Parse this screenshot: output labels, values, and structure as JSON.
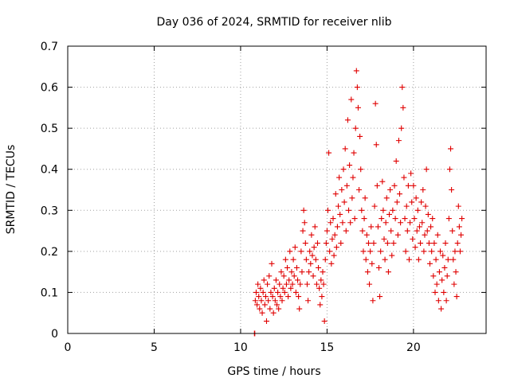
{
  "chart_data": {
    "type": "scatter",
    "title": "Day 036 of 2024, SRMTID for receiver nlib",
    "xlabel": "GPS time / hours",
    "ylabel": "SRMTID / TECUs",
    "xlim": [
      0,
      24.2
    ],
    "ylim": [
      0,
      0.7
    ],
    "xticks": [
      0,
      5,
      10,
      15,
      20
    ],
    "yticks": [
      0,
      0.1,
      0.2,
      0.3,
      0.4,
      0.5,
      0.6,
      0.7
    ],
    "x_tick_labels": [
      "0",
      "5",
      "10",
      "15",
      "20"
    ],
    "y_tick_labels": [
      "0",
      "0.1",
      "0.2",
      "0.3",
      "0.4",
      "0.5",
      "0.6",
      "0.7"
    ],
    "grid": true,
    "marker": "+",
    "series": [
      {
        "name": "SRMTID",
        "color": "#e00000",
        "points": [
          [
            10.8,
            0.0
          ],
          [
            10.82,
            0.0
          ],
          [
            10.85,
            0.08
          ],
          [
            10.9,
            0.1
          ],
          [
            10.95,
            0.07
          ],
          [
            11.0,
            0.12
          ],
          [
            11.05,
            0.09
          ],
          [
            11.1,
            0.06
          ],
          [
            11.15,
            0.11
          ],
          [
            11.2,
            0.08
          ],
          [
            11.25,
            0.05
          ],
          [
            11.3,
            0.1
          ],
          [
            11.35,
            0.13
          ],
          [
            11.4,
            0.07
          ],
          [
            11.45,
            0.09
          ],
          [
            11.5,
            0.03
          ],
          [
            11.55,
            0.12
          ],
          [
            11.6,
            0.08
          ],
          [
            11.65,
            0.14
          ],
          [
            11.7,
            0.06
          ],
          [
            11.75,
            0.1
          ],
          [
            11.8,
            0.17
          ],
          [
            11.85,
            0.09
          ],
          [
            11.9,
            0.05
          ],
          [
            11.95,
            0.11
          ],
          [
            12.0,
            0.08
          ],
          [
            12.05,
            0.13
          ],
          [
            12.1,
            0.07
          ],
          [
            12.15,
            0.1
          ],
          [
            12.2,
            0.06
          ],
          [
            12.25,
            0.12
          ],
          [
            12.3,
            0.09
          ],
          [
            12.35,
            0.15
          ],
          [
            12.4,
            0.08
          ],
          [
            12.45,
            0.11
          ],
          [
            12.5,
            0.14
          ],
          [
            12.55,
            0.1
          ],
          [
            12.6,
            0.18
          ],
          [
            12.65,
            0.12
          ],
          [
            12.7,
            0.16
          ],
          [
            12.75,
            0.09
          ],
          [
            12.8,
            0.13
          ],
          [
            12.85,
            0.2
          ],
          [
            12.9,
            0.11
          ],
          [
            12.95,
            0.15
          ],
          [
            13.0,
            0.12
          ],
          [
            13.05,
            0.18
          ],
          [
            13.1,
            0.14
          ],
          [
            13.15,
            0.21
          ],
          [
            13.2,
            0.1
          ],
          [
            13.25,
            0.16
          ],
          [
            13.3,
            0.13
          ],
          [
            13.35,
            0.09
          ],
          [
            13.4,
            0.06
          ],
          [
            13.45,
            0.12
          ],
          [
            13.5,
            0.2
          ],
          [
            13.55,
            0.15
          ],
          [
            13.6,
            0.25
          ],
          [
            13.65,
            0.3
          ],
          [
            13.7,
            0.27
          ],
          [
            13.75,
            0.22
          ],
          [
            13.8,
            0.18
          ],
          [
            13.85,
            0.12
          ],
          [
            13.9,
            0.08
          ],
          [
            13.95,
            0.15
          ],
          [
            14.0,
            0.2
          ],
          [
            14.05,
            0.17
          ],
          [
            14.1,
            0.24
          ],
          [
            14.15,
            0.19
          ],
          [
            14.2,
            0.14
          ],
          [
            14.25,
            0.21
          ],
          [
            14.3,
            0.26
          ],
          [
            14.35,
            0.18
          ],
          [
            14.4,
            0.12
          ],
          [
            14.45,
            0.22
          ],
          [
            14.5,
            0.16
          ],
          [
            14.55,
            0.11
          ],
          [
            14.6,
            0.07
          ],
          [
            14.65,
            0.13
          ],
          [
            14.7,
            0.09
          ],
          [
            14.75,
            0.15
          ],
          [
            14.8,
            0.12
          ],
          [
            14.85,
            0.03
          ],
          [
            14.9,
            0.18
          ],
          [
            14.95,
            0.22
          ],
          [
            15.0,
            0.25
          ],
          [
            15.05,
            0.3
          ],
          [
            15.1,
            0.44
          ],
          [
            15.15,
            0.2
          ],
          [
            15.2,
            0.27
          ],
          [
            15.25,
            0.17
          ],
          [
            15.3,
            0.23
          ],
          [
            15.35,
            0.28
          ],
          [
            15.4,
            0.19
          ],
          [
            15.45,
            0.24
          ],
          [
            15.5,
            0.34
          ],
          [
            15.55,
            0.21
          ],
          [
            15.6,
            0.26
          ],
          [
            15.65,
            0.31
          ],
          [
            15.7,
            0.38
          ],
          [
            15.75,
            0.29
          ],
          [
            15.8,
            0.22
          ],
          [
            15.85,
            0.35
          ],
          [
            15.9,
            0.27
          ],
          [
            15.95,
            0.4
          ],
          [
            16.0,
            0.32
          ],
          [
            16.05,
            0.45
          ],
          [
            16.1,
            0.25
          ],
          [
            16.15,
            0.36
          ],
          [
            16.2,
            0.52
          ],
          [
            16.25,
            0.3
          ],
          [
            16.3,
            0.41
          ],
          [
            16.35,
            0.27
          ],
          [
            16.4,
            0.57
          ],
          [
            16.45,
            0.33
          ],
          [
            16.5,
            0.38
          ],
          [
            16.55,
            0.44
          ],
          [
            16.6,
            0.28
          ],
          [
            16.65,
            0.5
          ],
          [
            16.7,
            0.64
          ],
          [
            16.75,
            0.6
          ],
          [
            16.8,
            0.55
          ],
          [
            16.85,
            0.35
          ],
          [
            16.9,
            0.48
          ],
          [
            16.95,
            0.4
          ],
          [
            17.0,
            0.3
          ],
          [
            17.05,
            0.25
          ],
          [
            17.1,
            0.2
          ],
          [
            17.15,
            0.28
          ],
          [
            17.2,
            0.33
          ],
          [
            17.25,
            0.18
          ],
          [
            17.3,
            0.24
          ],
          [
            17.35,
            0.15
          ],
          [
            17.4,
            0.22
          ],
          [
            17.45,
            0.12
          ],
          [
            17.5,
            0.2
          ],
          [
            17.55,
            0.26
          ],
          [
            17.6,
            0.17
          ],
          [
            17.65,
            0.08
          ],
          [
            17.7,
            0.22
          ],
          [
            17.75,
            0.31
          ],
          [
            17.8,
            0.56
          ],
          [
            17.85,
            0.46
          ],
          [
            17.9,
            0.36
          ],
          [
            17.95,
            0.26
          ],
          [
            18.0,
            0.16
          ],
          [
            18.05,
            0.09
          ],
          [
            18.1,
            0.2
          ],
          [
            18.15,
            0.28
          ],
          [
            18.2,
            0.37
          ],
          [
            18.25,
            0.3
          ],
          [
            18.3,
            0.23
          ],
          [
            18.35,
            0.18
          ],
          [
            18.4,
            0.27
          ],
          [
            18.45,
            0.33
          ],
          [
            18.5,
            0.22
          ],
          [
            18.55,
            0.15
          ],
          [
            18.6,
            0.29
          ],
          [
            18.65,
            0.35
          ],
          [
            18.7,
            0.25
          ],
          [
            18.75,
            0.19
          ],
          [
            18.8,
            0.3
          ],
          [
            18.85,
            0.22
          ],
          [
            18.9,
            0.36
          ],
          [
            18.95,
            0.28
          ],
          [
            19.0,
            0.42
          ],
          [
            19.05,
            0.32
          ],
          [
            19.1,
            0.24
          ],
          [
            19.15,
            0.47
          ],
          [
            19.2,
            0.34
          ],
          [
            19.25,
            0.27
          ],
          [
            19.3,
            0.5
          ],
          [
            19.35,
            0.6
          ],
          [
            19.4,
            0.55
          ],
          [
            19.45,
            0.38
          ],
          [
            19.5,
            0.28
          ],
          [
            19.55,
            0.2
          ],
          [
            19.6,
            0.31
          ],
          [
            19.65,
            0.25
          ],
          [
            19.7,
            0.36
          ],
          [
            19.75,
            0.18
          ],
          [
            19.8,
            0.27
          ],
          [
            19.85,
            0.39
          ],
          [
            19.9,
            0.32
          ],
          [
            19.95,
            0.23
          ],
          [
            20.0,
            0.36
          ],
          [
            20.05,
            0.28
          ],
          [
            20.1,
            0.21
          ],
          [
            20.15,
            0.33
          ],
          [
            20.2,
            0.25
          ],
          [
            20.25,
            0.3
          ],
          [
            20.3,
            0.18
          ],
          [
            20.35,
            0.26
          ],
          [
            20.4,
            0.22
          ],
          [
            20.45,
            0.32
          ],
          [
            20.5,
            0.27
          ],
          [
            20.55,
            0.35
          ],
          [
            20.6,
            0.2
          ],
          [
            20.65,
            0.24
          ],
          [
            20.7,
            0.31
          ],
          [
            20.75,
            0.4
          ],
          [
            20.8,
            0.25
          ],
          [
            20.85,
            0.29
          ],
          [
            20.9,
            0.22
          ],
          [
            20.95,
            0.17
          ],
          [
            21.0,
            0.26
          ],
          [
            21.05,
            0.2
          ],
          [
            21.1,
            0.28
          ],
          [
            21.15,
            0.14
          ],
          [
            21.2,
            0.22
          ],
          [
            21.25,
            0.1
          ],
          [
            21.3,
            0.18
          ],
          [
            21.35,
            0.12
          ],
          [
            21.4,
            0.24
          ],
          [
            21.45,
            0.08
          ],
          [
            21.5,
            0.15
          ],
          [
            21.55,
            0.2
          ],
          [
            21.6,
            0.06
          ],
          [
            21.65,
            0.13
          ],
          [
            21.7,
            0.19
          ],
          [
            21.75,
            0.1
          ],
          [
            21.8,
            0.16
          ],
          [
            21.85,
            0.22
          ],
          [
            21.9,
            0.08
          ],
          [
            21.95,
            0.14
          ],
          [
            22.0,
            0.18
          ],
          [
            22.05,
            0.28
          ],
          [
            22.1,
            0.4
          ],
          [
            22.15,
            0.45
          ],
          [
            22.2,
            0.35
          ],
          [
            22.25,
            0.25
          ],
          [
            22.3,
            0.18
          ],
          [
            22.35,
            0.12
          ],
          [
            22.4,
            0.2
          ],
          [
            22.45,
            0.15
          ],
          [
            22.5,
            0.09
          ],
          [
            22.55,
            0.22
          ],
          [
            22.6,
            0.31
          ],
          [
            22.65,
            0.26
          ],
          [
            22.7,
            0.2
          ],
          [
            22.75,
            0.24
          ],
          [
            22.8,
            0.28
          ]
        ]
      }
    ]
  }
}
